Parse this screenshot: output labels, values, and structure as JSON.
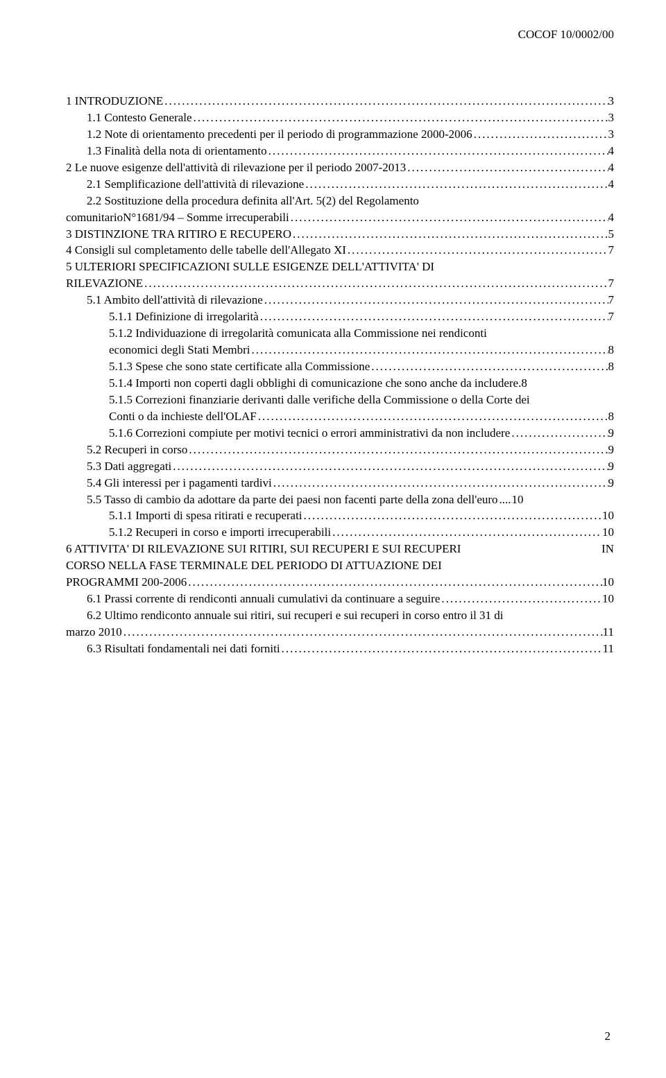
{
  "header": {
    "doc_code": "COCOF 10/0002/00"
  },
  "footer": {
    "page_number": "2"
  },
  "toc": [
    {
      "level": 1,
      "label": "1    INTRODUZIONE",
      "page": "3"
    },
    {
      "level": 2,
      "label": "1.1    Contesto Generale",
      "page": "3"
    },
    {
      "level": 2,
      "label": "1.2    Note di orientamento precedenti per il periodo di programmazione 2000-2006",
      "page": "3"
    },
    {
      "level": 2,
      "label": "1.3    Finalità della nota di orientamento",
      "page": "4"
    },
    {
      "level": 1,
      "label": "2    Le  nuove esigenze  dell'attività di rilevazione per il periodo 2007-2013",
      "page": "4"
    },
    {
      "level": 2,
      "label": "2.1    Semplificazione dell'attività di rilevazione",
      "page": "4"
    },
    {
      "level": 2,
      "label": "2.2    Sostituzione della procedura definita  all'Art. 5(2) del Regolamento",
      "wrap": "comunitarioN°1681/94 – Somme irrecuperabili",
      "page": "4",
      "wrap_level": 1
    },
    {
      "level": 1,
      "label": "3    DISTINZIONE TRA RITIRO E RECUPERO",
      "page": "5"
    },
    {
      "level": 1,
      "label": "4    Consigli sul completamento delle tabelle dell'Allegato XI",
      "page": "7"
    },
    {
      "level": 1,
      "label": "5    ULTERIORI SPECIFICAZIONI SULLE ESIGENZE  DELL'ATTIVITA' DI",
      "wrap": "RILEVAZIONE",
      "page": "7",
      "wrap_level": 1
    },
    {
      "level": 2,
      "label": "5.1    Ambito dell'attività di rilevazione",
      "page": "7"
    },
    {
      "level": 3,
      "label": "5.1.1      Definizione di irregolarità",
      "page": "7"
    },
    {
      "level": 3,
      "label": "5.1.2      Individuazione di irregolarità  comunicata  alla Commissione nei rendiconti",
      "wrap": "economici  degli Stati Membri",
      "page": "8",
      "wrap_level": 3
    },
    {
      "level": 3,
      "label": "5.1.3      Spese che sono state certificate alla Commissione",
      "page": "8"
    },
    {
      "level": 3,
      "label": "5.1.4      Importi non coperti dagli obblighi di comunicazione che sono anche da includere",
      "page": ".8",
      "no_dots": true
    },
    {
      "level": 3,
      "label": "5.1.5      Correzioni finanziarie derivanti dalle verifiche della Commissione o della Corte dei",
      "wrap": "Conti o da inchieste dell'OLAF",
      "page": "8",
      "wrap_level": 3
    },
    {
      "level": 3,
      "label": "5.1.6      Correzioni compiute per motivi tecnici o errori amministrativi da non includere",
      "page": "9"
    },
    {
      "level": 2,
      "label": "5.2    Recuperi in corso",
      "page": "9"
    },
    {
      "level": 2,
      "label": "5.3    Dati aggregati",
      "page": "9"
    },
    {
      "level": 2,
      "label": "5.4    Gli interessi per i pagamenti tardivi",
      "page": "9"
    },
    {
      "level": 2,
      "label": "5.5    Tasso di cambio da adottare da parte dei paesi  non facenti parte della zona dell'euro",
      "page": "10",
      "tight": true
    },
    {
      "level": 3,
      "label": "5.1.1      Importi di spesa ritirati e recuperati",
      "page": "10"
    },
    {
      "level": 3,
      "label": "5.1.2      Recuperi in corso e importi irrecuperabili",
      "page": "10"
    },
    {
      "level": 1,
      "label": "6      ATTIVITA' DI RILEVAZIONE SUI RITIRI, SUI RECUPERI E SUI RECUPERI       IN",
      "plain_lines": [
        "CORSO NELLA FASE TERMINALE DEL PERIODO DI ATTUAZIONE DEI"
      ],
      "wrap": "PROGRAMMI  200-2006",
      "page": "10",
      "wrap_level": 1,
      "no_dots_first": true
    },
    {
      "level": 2,
      "label": "6.1    Prassi corrente di rendiconti annuali cumulativi da continuare a seguire",
      "page": "10"
    },
    {
      "level": 2,
      "label": "6.2    Ultimo rendiconto annuale sui ritiri, sui recuperi e sui recuperi in corso entro il 31  di",
      "wrap": "marzo 2010",
      "page": "11",
      "wrap_level": 1
    },
    {
      "level": 2,
      "label": "6.3    Risultati fondamentali nei dati forniti",
      "page": "11"
    }
  ]
}
